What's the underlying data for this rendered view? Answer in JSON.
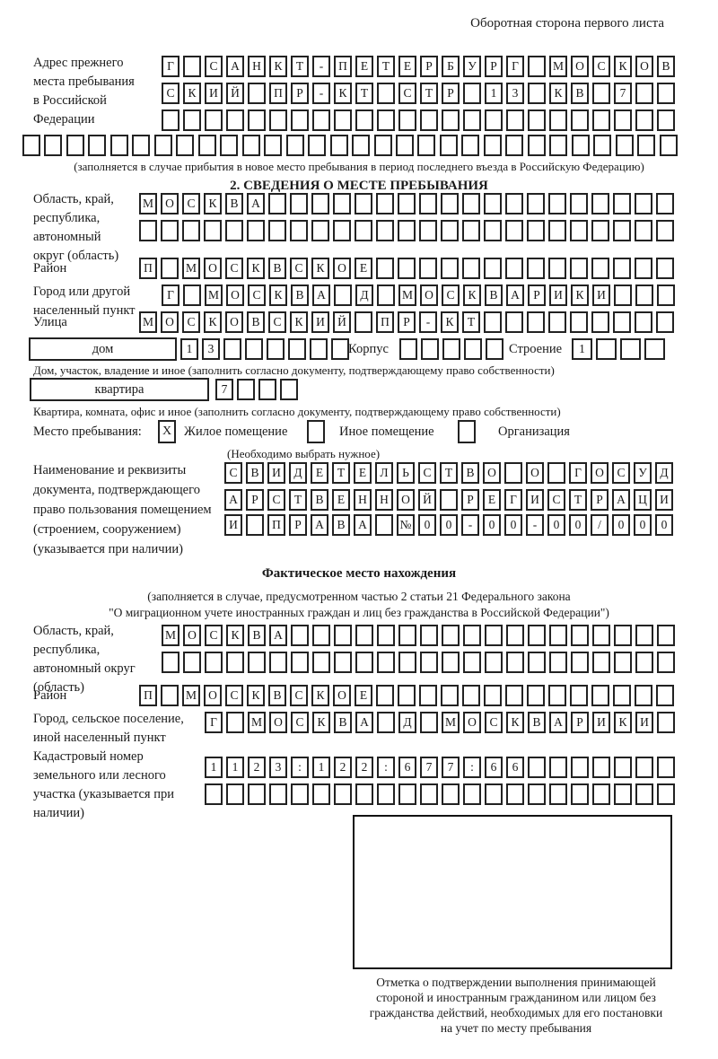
{
  "colors": {
    "ink": "#1a1a1a",
    "background": "#ffffff"
  },
  "header": {
    "note": "Оборотная сторона первого листа"
  },
  "prev_address": {
    "label": "Адрес прежнего места пребывания в Российской Федерации",
    "rows": [
      [
        "Г",
        "",
        "С",
        "А",
        "Н",
        "К",
        "Т",
        "-",
        "П",
        "Е",
        "Т",
        "Е",
        "Р",
        "Б",
        "У",
        "Р",
        "Г",
        "",
        "М",
        "О",
        "С",
        "К",
        "О",
        "В"
      ],
      [
        "С",
        "К",
        "И",
        "Й",
        "",
        "П",
        "Р",
        "-",
        "К",
        "Т",
        "",
        "С",
        "Т",
        "Р",
        "",
        "1",
        "3",
        "",
        "К",
        "В",
        "",
        "7",
        "",
        ""
      ],
      [
        "",
        "",
        "",
        "",
        "",
        "",
        "",
        "",
        "",
        "",
        "",
        "",
        "",
        "",
        "",
        "",
        "",
        "",
        "",
        "",
        "",
        "",
        "",
        ""
      ]
    ],
    "full_row": [
      "",
      "",
      "",
      "",
      "",
      "",
      "",
      "",
      "",
      "",
      "",
      "",
      "",
      "",
      "",
      "",
      "",
      "",
      "",
      "",
      "",
      "",
      "",
      "",
      "",
      "",
      "",
      "",
      "",
      ""
    ],
    "caption": "(заполняется в случае прибытия в новое место пребывания в период последнего въезда в Российскую Федерацию)"
  },
  "section2": {
    "title": "2. СВЕДЕНИЯ О МЕСТЕ ПРЕБЫВАНИЯ",
    "region": {
      "label": "Область, край, республика, автономный округ (область)",
      "rows": [
        [
          "М",
          "О",
          "С",
          "К",
          "В",
          "А",
          "",
          "",
          "",
          "",
          "",
          "",
          "",
          "",
          "",
          "",
          "",
          "",
          "",
          "",
          "",
          "",
          "",
          "",
          ""
        ],
        [
          "",
          "",
          "",
          "",
          "",
          "",
          "",
          "",
          "",
          "",
          "",
          "",
          "",
          "",
          "",
          "",
          "",
          "",
          "",
          "",
          "",
          "",
          "",
          "",
          ""
        ]
      ]
    },
    "district": {
      "label": "Район",
      "row": [
        "П",
        "",
        "М",
        "О",
        "С",
        "К",
        "В",
        "С",
        "К",
        "О",
        "Е",
        "",
        "",
        "",
        "",
        "",
        "",
        "",
        "",
        "",
        "",
        "",
        "",
        "",
        ""
      ]
    },
    "city": {
      "label": "Город или другой населенный пункт",
      "row": [
        "Г",
        "",
        "М",
        "О",
        "С",
        "К",
        "В",
        "А",
        "",
        "Д",
        "",
        "М",
        "О",
        "С",
        "К",
        "В",
        "А",
        "Р",
        "И",
        "К",
        "И",
        "",
        "",
        ""
      ]
    },
    "street": {
      "label": "Улица",
      "row": [
        "М",
        "О",
        "С",
        "К",
        "О",
        "В",
        "С",
        "К",
        "И",
        "Й",
        "",
        "П",
        "Р",
        "-",
        "К",
        "Т",
        "",
        "",
        "",
        "",
        "",
        "",
        "",
        "",
        ""
      ]
    },
    "house": {
      "box_label": "дом",
      "cells": [
        "1",
        "3",
        "",
        "",
        "",
        "",
        "",
        ""
      ],
      "korpus_label": "Корпус",
      "korpus_cells": [
        "",
        "",
        "",
        "",
        ""
      ],
      "stroenie_label": "Строение",
      "stroenie_cells": [
        "1",
        "",
        "",
        ""
      ]
    },
    "house_caption": "Дом, участок, владение и иное (заполнить согласно документу, подтверждающему право собственности)",
    "apartment": {
      "box_label": "квартира",
      "cells": [
        "7",
        "",
        "",
        ""
      ]
    },
    "apartment_caption": "Квартира, комната, офис и иное (заполнить согласно документу, подтверждающему право собственности)",
    "stay_type": {
      "label": "Место пребывания:",
      "options": [
        {
          "label": "Жилое помещение",
          "mark": "X"
        },
        {
          "label": "Иное помещение",
          "mark": ""
        },
        {
          "label": "Организация",
          "mark": ""
        }
      ],
      "caption": "(Необходимо выбрать нужное)"
    },
    "document": {
      "label": "Наименование и реквизиты документа, подтверждающего право пользования помещением (строением, сооружением) (указывается при наличии)",
      "rows": [
        [
          "С",
          "В",
          "И",
          "Д",
          "Е",
          "Т",
          "Е",
          "Л",
          "Ь",
          "С",
          "Т",
          "В",
          "О",
          "",
          "О",
          "",
          "Г",
          "О",
          "С",
          "У",
          "Д"
        ],
        [
          "А",
          "Р",
          "С",
          "Т",
          "В",
          "Е",
          "Н",
          "Н",
          "О",
          "Й",
          "",
          "Р",
          "Е",
          "Г",
          "И",
          "С",
          "Т",
          "Р",
          "А",
          "Ц",
          "И"
        ],
        [
          "И",
          "",
          "П",
          "Р",
          "А",
          "В",
          "А",
          "",
          "№",
          "0",
          "0",
          "-",
          "0",
          "0",
          "-",
          "0",
          "0",
          "/",
          "0",
          "0",
          "0"
        ]
      ]
    }
  },
  "actual_location": {
    "title": "Фактическое место нахождения",
    "caption_line1": "(заполняется в случае, предусмотренном частью 2 статьи 21 Федерального закона",
    "caption_line2": "\"О миграционном учете иностранных граждан и лиц без гражданства в Российской Федерации\")",
    "region": {
      "label": "Область, край, республика, автономный округ (область)",
      "rows": [
        [
          "М",
          "О",
          "С",
          "К",
          "В",
          "А",
          "",
          "",
          "",
          "",
          "",
          "",
          "",
          "",
          "",
          "",
          "",
          "",
          "",
          "",
          "",
          "",
          "",
          ""
        ],
        [
          "",
          "",
          "",
          "",
          "",
          "",
          "",
          "",
          "",
          "",
          "",
          "",
          "",
          "",
          "",
          "",
          "",
          "",
          "",
          "",
          "",
          "",
          "",
          ""
        ]
      ]
    },
    "district": {
      "label": "Район",
      "row": [
        "П",
        "",
        "М",
        "О",
        "С",
        "К",
        "В",
        "С",
        "К",
        "О",
        "Е",
        "",
        "",
        "",
        "",
        "",
        "",
        "",
        "",
        "",
        "",
        "",
        "",
        "",
        ""
      ]
    },
    "city": {
      "label": "Город, сельское поселение, иной населенный пункт",
      "row": [
        "Г",
        "",
        "М",
        "О",
        "С",
        "К",
        "В",
        "А",
        "",
        "Д",
        "",
        "М",
        "О",
        "С",
        "К",
        "В",
        "А",
        "Р",
        "И",
        "К",
        "И",
        ""
      ]
    },
    "cadastral": {
      "label": "Кадастровый номер земельного или лесного участка (указывается при наличии)",
      "rows": [
        [
          "1",
          "1",
          "2",
          "3",
          ":",
          "1",
          "2",
          "2",
          ":",
          "6",
          "7",
          "7",
          ":",
          "6",
          "6",
          "",
          "",
          "",
          "",
          "",
          "",
          ""
        ],
        [
          "",
          "",
          "",
          "",
          "",
          "",
          "",
          "",
          "",
          "",
          "",
          "",
          "",
          "",
          "",
          "",
          "",
          "",
          "",
          "",
          "",
          ""
        ]
      ]
    }
  },
  "stamp": {
    "caption_lines": [
      "Отметка о подтверждении выполнения принимающей",
      "стороной и иностранным гражданином или лицом без",
      "гражданства действий, необходимых для его постановки",
      "на учет по месту пребывания"
    ]
  }
}
